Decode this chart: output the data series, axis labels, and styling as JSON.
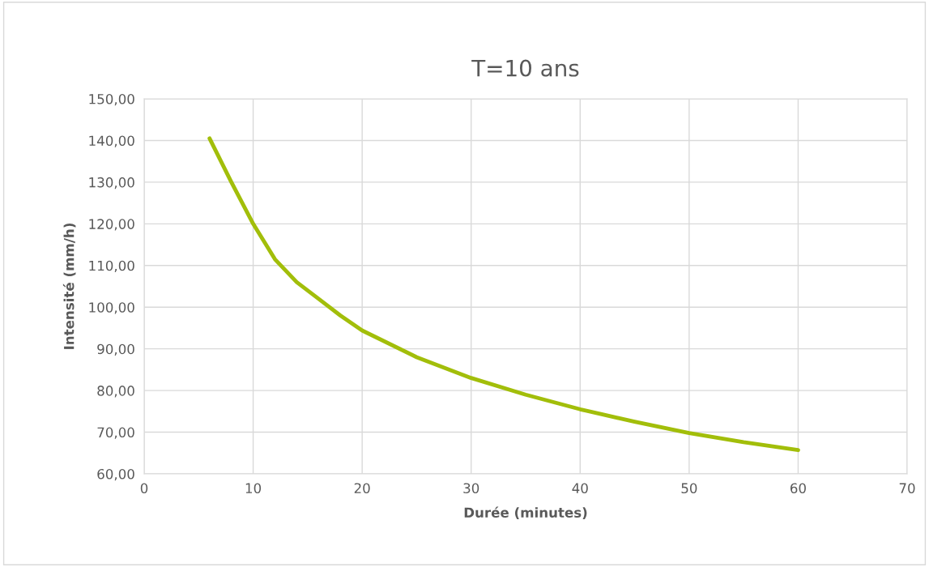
{
  "chart_data": {
    "type": "line",
    "title": "T=10 ans",
    "xlabel": "Durée (minutes)",
    "ylabel": "Intensité (mm/h)",
    "x": [
      6,
      8,
      10,
      12,
      14,
      16,
      18,
      20,
      25,
      30,
      35,
      40,
      45,
      50,
      55,
      60
    ],
    "series": [
      {
        "color": "#a2be0a",
        "values": [
          140.5,
          130,
          120,
          111.5,
          106,
          102,
          98,
          94.4,
          88,
          83,
          79,
          75.5,
          72.5,
          69.8,
          67.6,
          65.7
        ]
      }
    ],
    "xlim": [
      0,
      70
    ],
    "xticks": [
      0,
      10,
      20,
      30,
      40,
      50,
      60,
      70
    ],
    "ylim": [
      60,
      150
    ],
    "yticks": [
      {
        "value": 60,
        "label": "60,00"
      },
      {
        "value": 70,
        "label": "70,00"
      },
      {
        "value": 80,
        "label": "80,00"
      },
      {
        "value": 90,
        "label": "90,00"
      },
      {
        "value": 100,
        "label": "100,00"
      },
      {
        "value": 110,
        "label": "110,00"
      },
      {
        "value": 120,
        "label": "120,00"
      },
      {
        "value": 130,
        "label": "130,00"
      },
      {
        "value": 140,
        "label": "140,00"
      },
      {
        "value": 150,
        "label": "150,00"
      }
    ],
    "grid": true,
    "marker": "none",
    "line_style": "solid"
  }
}
